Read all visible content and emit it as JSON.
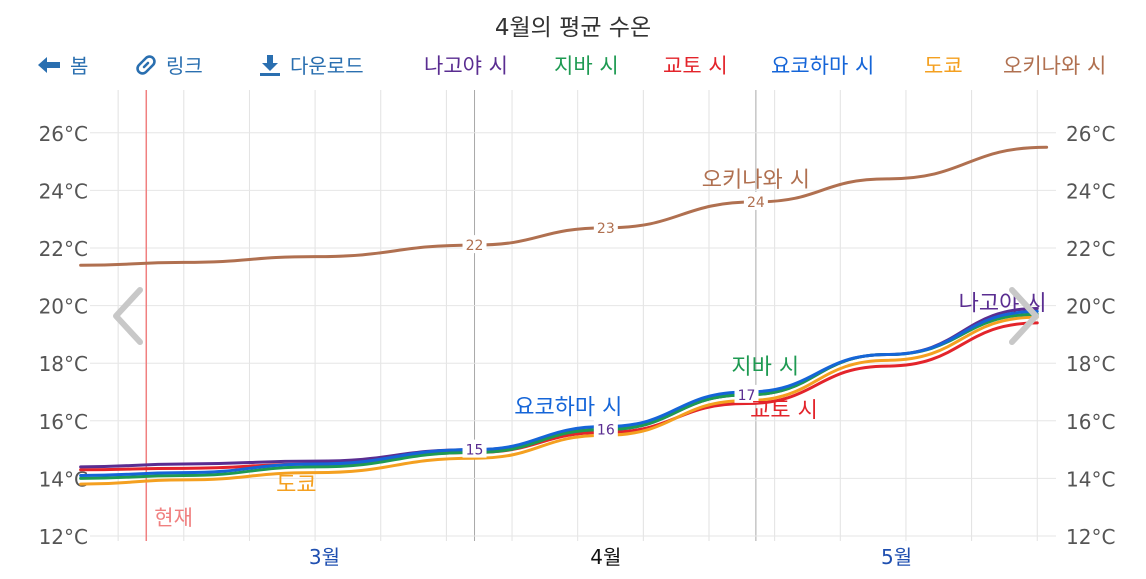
{
  "page_title": "4월의 평균 수온",
  "toolbar": {
    "back_label": "봄",
    "link_label": "링크",
    "download_label": "다운로드"
  },
  "legend": [
    {
      "name": "나고야 시",
      "color": "#5a2d91"
    },
    {
      "name": "지바 시",
      "color": "#1e9a52"
    },
    {
      "name": "교토 시",
      "color": "#e3242b"
    },
    {
      "name": "요코하마 시",
      "color": "#1565d8"
    },
    {
      "name": "도쿄",
      "color": "#f4a020"
    },
    {
      "name": "오키나와 시",
      "color": "#b07050"
    }
  ],
  "icons": {
    "back": "arrow-left-icon",
    "link": "link-icon",
    "download": "download-icon",
    "prev": "chevron-left-icon",
    "next": "chevron-right-icon"
  },
  "chart_data": {
    "type": "line",
    "title": "4월의 평균 수온",
    "x_axis": {
      "ticks": [
        "3월",
        "4월",
        "5월"
      ],
      "current_tick": "4월",
      "range": [
        "2/20",
        "5/31"
      ]
    },
    "y_axis": {
      "unit": "°C",
      "ticks": [
        "12°C",
        "14°C",
        "16°C",
        "18°C",
        "20°C",
        "22°C",
        "24°C",
        "26°C"
      ],
      "ylim": [
        12,
        26
      ],
      "left_and_right": true
    },
    "current_marker": {
      "label": "현재",
      "x": "2/25",
      "color": "#f08080"
    },
    "series": [
      {
        "name": "오키나와 시",
        "color": "#b07050",
        "points": [
          [
            "2/18",
            21.4
          ],
          [
            "3/1",
            21.5
          ],
          [
            "3/15",
            21.7
          ],
          [
            "4/1",
            22.1
          ],
          [
            "4/15",
            22.7
          ],
          [
            "5/1",
            23.6
          ],
          [
            "5/15",
            24.4
          ],
          [
            "6/1",
            25.5
          ]
        ],
        "labels": [
          [
            "4/1",
            "22"
          ],
          [
            "4/15",
            "23"
          ],
          [
            "5/1",
            "24"
          ]
        ]
      },
      {
        "name": "나고야 시",
        "color": "#5a2d91",
        "points": [
          [
            "2/18",
            14.4
          ],
          [
            "3/1",
            14.5
          ],
          [
            "3/15",
            14.6
          ],
          [
            "4/1",
            15.0
          ],
          [
            "4/15",
            15.7
          ],
          [
            "4/30",
            16.9
          ],
          [
            "5/15",
            18.3
          ],
          [
            "5/31",
            19.9
          ]
        ],
        "labels": [
          [
            "4/1",
            "15"
          ],
          [
            "4/15",
            "16"
          ],
          [
            "4/30",
            "17"
          ]
        ]
      },
      {
        "name": "지바 시",
        "color": "#1e9a52",
        "points": [
          [
            "2/18",
            14.0
          ],
          [
            "3/1",
            14.1
          ],
          [
            "3/15",
            14.4
          ],
          [
            "4/1",
            14.9
          ],
          [
            "4/15",
            15.7
          ],
          [
            "4/30",
            16.9
          ],
          [
            "5/15",
            18.3
          ],
          [
            "5/31",
            19.7
          ]
        ]
      },
      {
        "name": "교토 시",
        "color": "#e3242b",
        "points": [
          [
            "2/18",
            14.3
          ],
          [
            "3/1",
            14.35
          ],
          [
            "3/15",
            14.5
          ],
          [
            "4/1",
            14.9
          ],
          [
            "4/15",
            15.6
          ],
          [
            "4/30",
            16.6
          ],
          [
            "5/15",
            17.9
          ],
          [
            "5/31",
            19.4
          ]
        ]
      },
      {
        "name": "요코하마 시",
        "color": "#1565d8",
        "points": [
          [
            "2/18",
            14.1
          ],
          [
            "3/1",
            14.2
          ],
          [
            "3/15",
            14.5
          ],
          [
            "4/1",
            15.0
          ],
          [
            "4/15",
            15.8
          ],
          [
            "4/30",
            17.0
          ],
          [
            "5/15",
            18.3
          ],
          [
            "5/31",
            19.8
          ]
        ]
      },
      {
        "name": "도쿄",
        "color": "#f4a020",
        "points": [
          [
            "2/18",
            13.8
          ],
          [
            "3/1",
            13.95
          ],
          [
            "3/15",
            14.2
          ],
          [
            "4/1",
            14.7
          ],
          [
            "4/15",
            15.5
          ],
          [
            "4/30",
            16.7
          ],
          [
            "5/15",
            18.1
          ],
          [
            "5/31",
            19.6
          ]
        ]
      }
    ],
    "annotations": [
      {
        "text": "오키나와 시",
        "x": "5/1",
        "y": 24.4,
        "color": "#b07050"
      },
      {
        "text": "나고야 시",
        "x": "6/1",
        "y": 20.1,
        "color": "#5a2d91"
      },
      {
        "text": "지바 시",
        "x": "5/2",
        "y": 17.9,
        "color": "#1e9a52"
      },
      {
        "text": "요코하마 시",
        "x": "4/11",
        "y": 16.5,
        "color": "#1565d8"
      },
      {
        "text": "교토 시",
        "x": "5/4",
        "y": 16.4,
        "color": "#e3242b"
      },
      {
        "text": "도쿄",
        "x": "3/13",
        "y": 13.8,
        "color": "#f4a020"
      }
    ],
    "grid": true,
    "legend_position": "top"
  }
}
